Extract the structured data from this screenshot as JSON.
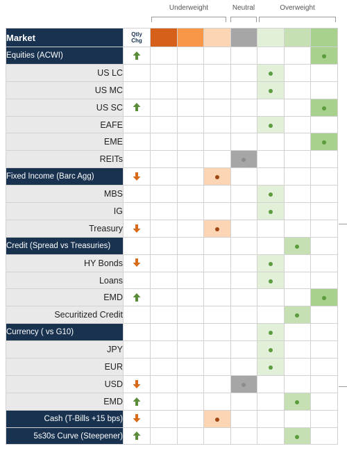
{
  "header": {
    "groups": [
      "Underweight",
      "Neutral",
      "Overweight"
    ],
    "market_label": "Market",
    "chg_label_line1": "Qtly",
    "chg_label_line2": "Chg"
  },
  "colors": {
    "navy": "#183250",
    "subrow": "#e9e9ea",
    "up_arrow": "#5b8c3a",
    "down_arrow": "#d86a1c",
    "scale": [
      "#d4601a",
      "#f79646",
      "#fcd5b5",
      "#a6a6a6",
      "#e2f0d9",
      "#c6e0b4",
      "#a9d18e"
    ],
    "dot_neutral": "#8c8c8c",
    "dot_under": "#a34712",
    "dot_over": "#5b9c3d"
  },
  "rows": [
    {
      "label": "Equities  (ACWI)",
      "type": "cat",
      "chg": "up",
      "pos": 6
    },
    {
      "label": "US LC",
      "type": "sub",
      "chg": "",
      "pos": 4
    },
    {
      "label": "US MC",
      "type": "sub",
      "chg": "",
      "pos": 4
    },
    {
      "label": "US SC",
      "type": "sub",
      "chg": "up",
      "pos": 6
    },
    {
      "label": "EAFE",
      "type": "sub",
      "chg": "",
      "pos": 4
    },
    {
      "label": "EME",
      "type": "sub",
      "chg": "",
      "pos": 6
    },
    {
      "label": "REITs",
      "type": "sub",
      "chg": "",
      "pos": 3
    },
    {
      "label": "Fixed Income (Barc Agg)",
      "type": "cat",
      "chg": "down",
      "pos": 2
    },
    {
      "label": "MBS",
      "type": "sub",
      "chg": "",
      "pos": 4
    },
    {
      "label": "IG",
      "type": "sub",
      "chg": "",
      "pos": 4
    },
    {
      "label": "Treasury",
      "type": "sub",
      "chg": "down",
      "pos": 2
    },
    {
      "label": "Credit (Spread vs Treasuries)",
      "type": "cat",
      "chg": "",
      "pos": 5
    },
    {
      "label": "HY Bonds",
      "type": "sub",
      "chg": "down",
      "pos": 4
    },
    {
      "label": "Loans",
      "type": "sub",
      "chg": "",
      "pos": 4
    },
    {
      "label": "EMD",
      "type": "sub",
      "chg": "up",
      "pos": 6
    },
    {
      "label": "Securitized Credit",
      "type": "sub",
      "chg": "",
      "pos": 5
    },
    {
      "label": "Currency ( vs G10)",
      "type": "cat",
      "chg": "",
      "pos": 4
    },
    {
      "label": "JPY",
      "type": "sub",
      "chg": "",
      "pos": 4
    },
    {
      "label": "EUR",
      "type": "sub",
      "chg": "",
      "pos": 4
    },
    {
      "label": "USD",
      "type": "sub",
      "chg": "down",
      "pos": 3
    },
    {
      "label": "EMD",
      "type": "sub",
      "chg": "up",
      "pos": 5
    },
    {
      "label": "Cash (T-Bills +15 bps)",
      "type": "cat-right",
      "chg": "down",
      "pos": 2
    },
    {
      "label": "5s30s Curve (Steepener)",
      "type": "cat-right",
      "chg": "up",
      "pos": 5
    }
  ]
}
